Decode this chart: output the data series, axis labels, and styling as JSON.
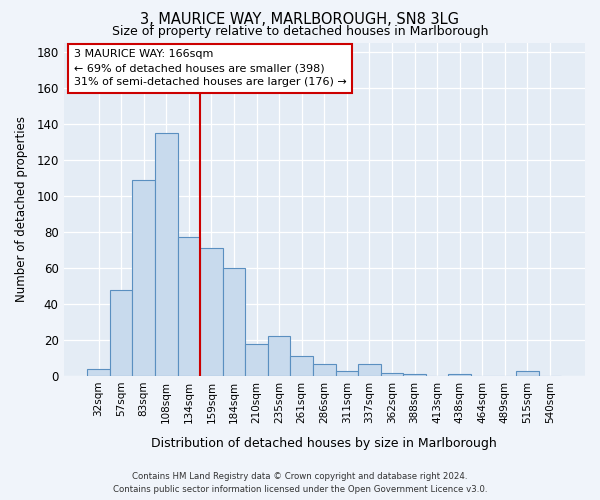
{
  "title": "3, MAURICE WAY, MARLBOROUGH, SN8 3LG",
  "subtitle": "Size of property relative to detached houses in Marlborough",
  "xlabel": "Distribution of detached houses by size in Marlborough",
  "ylabel": "Number of detached properties",
  "categories": [
    "32sqm",
    "57sqm",
    "83sqm",
    "108sqm",
    "134sqm",
    "159sqm",
    "184sqm",
    "210sqm",
    "235sqm",
    "261sqm",
    "286sqm",
    "311sqm",
    "337sqm",
    "362sqm",
    "388sqm",
    "413sqm",
    "438sqm",
    "464sqm",
    "489sqm",
    "515sqm",
    "540sqm"
  ],
  "values": [
    4,
    48,
    109,
    135,
    77,
    71,
    60,
    18,
    22,
    11,
    7,
    3,
    7,
    2,
    1,
    0,
    1,
    0,
    0,
    3,
    0
  ],
  "bar_color": "#c8daed",
  "bar_edge_color": "#5a8fc0",
  "ref_line_value_index": 5,
  "annotation_line1": "3 MAURICE WAY: 166sqm",
  "annotation_line2": "← 69% of detached houses are smaller (398)",
  "annotation_line3": "31% of semi-detached houses are larger (176) →",
  "annotation_box_color": "#ffffff",
  "annotation_box_edge": "#cc0000",
  "ref_line_color": "#cc0000",
  "ylim": [
    0,
    185
  ],
  "yticks": [
    0,
    20,
    40,
    60,
    80,
    100,
    120,
    140,
    160,
    180
  ],
  "footer_line1": "Contains HM Land Registry data © Crown copyright and database right 2024.",
  "footer_line2": "Contains public sector information licensed under the Open Government Licence v3.0.",
  "background_color": "#f0f4fa",
  "plot_bg_color": "#e4ecf5"
}
